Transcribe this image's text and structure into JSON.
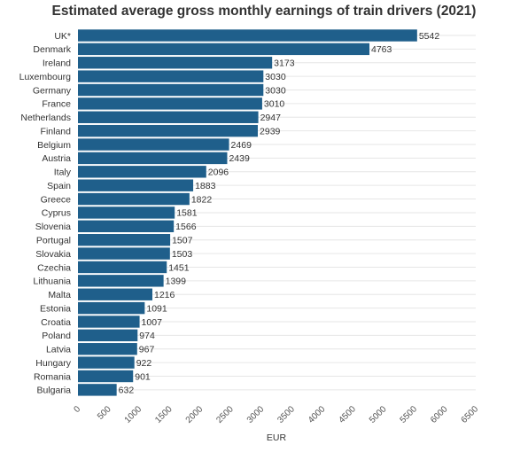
{
  "chart_data": {
    "type": "bar",
    "orientation": "horizontal",
    "title": "Estimated average gross monthly earnings of train drivers (2021)",
    "xlabel": "EUR",
    "ylabel": "",
    "xlim": [
      0,
      6500
    ],
    "x_ticks": [
      "0",
      "500",
      "1000",
      "1500",
      "2000",
      "2500",
      "3000",
      "3500",
      "4000",
      "4500",
      "5000",
      "5500",
      "6000",
      "6500"
    ],
    "grid": "horizontal",
    "legend": "none",
    "bar_color": "#1f5f8b",
    "categories": [
      "UK*",
      "Denmark",
      "Ireland",
      "Luxembourg",
      "Germany",
      "France",
      "Netherlands",
      "Finland",
      "Belgium",
      "Austria",
      "Italy",
      "Spain",
      "Greece",
      "Cyprus",
      "Slovenia",
      "Portugal",
      "Slovakia",
      "Czechia",
      "Lithuania",
      "Malta",
      "Estonia",
      "Croatia",
      "Poland",
      "Latvia",
      "Hungary",
      "Romania",
      "Bulgaria"
    ],
    "values": [
      5542,
      4763,
      3173,
      3030,
      3030,
      3010,
      2947,
      2939,
      2469,
      2439,
      2096,
      1883,
      1822,
      1581,
      1566,
      1507,
      1503,
      1451,
      1399,
      1216,
      1091,
      1007,
      974,
      967,
      922,
      901,
      632
    ]
  }
}
